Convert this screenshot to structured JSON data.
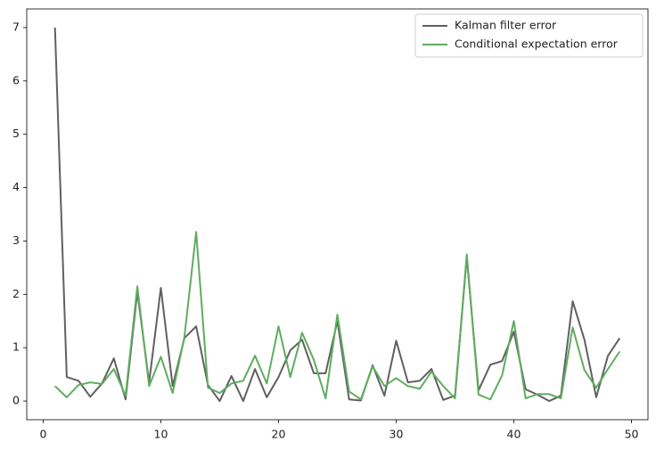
{
  "chart_data": {
    "type": "line",
    "x": [
      1,
      2,
      3,
      4,
      5,
      6,
      7,
      8,
      9,
      10,
      11,
      12,
      13,
      14,
      15,
      16,
      17,
      18,
      19,
      20,
      21,
      22,
      23,
      24,
      25,
      26,
      27,
      28,
      29,
      30,
      31,
      32,
      33,
      34,
      35,
      36,
      37,
      38,
      39,
      40,
      41,
      42,
      43,
      44,
      45,
      46,
      47,
      48,
      49
    ],
    "series": [
      {
        "name": "Kalman filter error",
        "color": "#606060",
        "values": [
          7.0,
          0.45,
          0.38,
          0.08,
          0.33,
          0.8,
          0.03,
          2.05,
          0.35,
          2.12,
          0.28,
          1.18,
          1.4,
          0.3,
          0.0,
          0.47,
          0.0,
          0.6,
          0.07,
          0.45,
          0.95,
          1.15,
          0.52,
          0.52,
          1.5,
          0.03,
          0.01,
          0.67,
          0.1,
          1.13,
          0.35,
          0.38,
          0.6,
          0.02,
          0.1,
          2.7,
          0.2,
          0.68,
          0.75,
          1.3,
          0.22,
          0.12,
          0.0,
          0.1,
          1.87,
          1.15,
          0.07,
          0.85,
          1.18
        ]
      },
      {
        "name": "Conditional expectation error",
        "color": "#5fad5f",
        "values": [
          0.28,
          0.07,
          0.3,
          0.35,
          0.32,
          0.6,
          0.1,
          2.15,
          0.28,
          0.83,
          0.15,
          1.2,
          3.17,
          0.25,
          0.15,
          0.33,
          0.38,
          0.85,
          0.33,
          1.4,
          0.45,
          1.28,
          0.77,
          0.05,
          1.62,
          0.18,
          0.03,
          0.65,
          0.28,
          0.43,
          0.28,
          0.23,
          0.55,
          0.28,
          0.05,
          2.75,
          0.12,
          0.03,
          0.48,
          1.5,
          0.05,
          0.13,
          0.13,
          0.05,
          1.38,
          0.58,
          0.25,
          0.6,
          0.93
        ]
      }
    ],
    "xlim": [
      -1.4,
      51.4
    ],
    "xticks": [
      0,
      10,
      20,
      30,
      40,
      50
    ],
    "ylim": [
      -0.35,
      7.35
    ],
    "yticks": [
      0,
      1,
      2,
      3,
      4,
      5,
      6,
      7
    ],
    "legend": "upper right"
  }
}
